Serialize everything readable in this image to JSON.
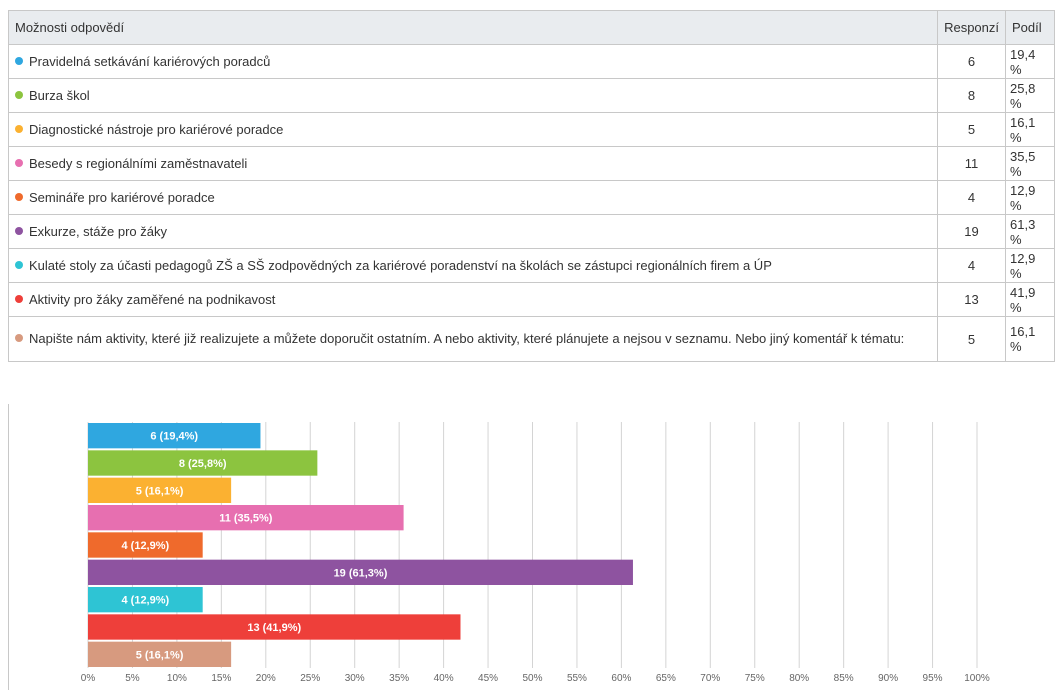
{
  "table": {
    "header": [
      "Možnosti odpovědí",
      "Responzí",
      "Podíl"
    ],
    "rows": [
      [
        "Pravidelná setkávání kariérových poradců",
        "6",
        "19,4 %"
      ],
      [
        "Burza škol",
        "8",
        "25,8 %"
      ],
      [
        "Diagnostické nástroje pro kariérové poradce",
        "5",
        "16,1 %"
      ],
      [
        "Besedy s regionálními zaměstnavateli",
        "11",
        "35,5 %"
      ],
      [
        "Semináře pro kariérové poradce",
        "4",
        "12,9 %"
      ],
      [
        "Exkurze, stáže pro žáky",
        "19",
        "61,3 %"
      ],
      [
        "Kulaté stoly za účasti pedagogů ZŠ a SŠ zodpovědných za kariérové poradenství na školách se zástupci regionálních firem a ÚP",
        "4",
        "12,9 %"
      ],
      [
        "Aktivity pro žáky zaměřené na podnikavost",
        "13",
        "41,9 %"
      ],
      [
        "Napište nám aktivity, které již realizujete a můžete doporučit ostatním. A nebo aktivity, které plánujete a nejsou v seznamu. Nebo jiný komentář k tématu:",
        "5",
        "16,1 %"
      ]
    ]
  },
  "chart_data": {
    "type": "bar",
    "orientation": "horizontal",
    "categories": [
      null,
      null,
      null,
      null,
      null,
      null,
      null,
      null,
      null
    ],
    "values": [
      19.4,
      25.8,
      16.1,
      35.5,
      12.9,
      61.3,
      12.9,
      41.9,
      16.1
    ],
    "value_labels": [
      "6 (19,4%)",
      "8 (25,8%)",
      "5 (16,1%)",
      "11 (35,5%)",
      "4 (12,9%)",
      "19 (61,3%)",
      "4 (12,9%)",
      "13 (41,9%)",
      "5 (16,1%)"
    ],
    "colors": [
      "#2fa7e0",
      "#8cc43f",
      "#fbb131",
      "#e76fb0",
      "#ef6a2c",
      "#8e53a0",
      "#2ec4d4",
      "#ee3f3a",
      "#d79a7f"
    ],
    "xlim": [
      0,
      100
    ],
    "xticks": [
      {
        "value": 0,
        "label": "0%"
      },
      {
        "value": 5,
        "label": "5%"
      },
      {
        "value": 10,
        "label": "10%"
      },
      {
        "value": 15,
        "label": "15%"
      },
      {
        "value": 20,
        "label": "20%"
      },
      {
        "value": 25,
        "label": "25%"
      },
      {
        "value": 30,
        "label": "30%"
      },
      {
        "value": 35,
        "label": "35%"
      },
      {
        "value": 40,
        "label": "40%"
      },
      {
        "value": 45,
        "label": "45%"
      },
      {
        "value": 50,
        "label": "50%"
      },
      {
        "value": 55,
        "label": "55%"
      },
      {
        "value": 60,
        "label": "60%"
      },
      {
        "value": 65,
        "label": "65%"
      },
      {
        "value": 70,
        "label": "70%"
      },
      {
        "value": 75,
        "label": "75%"
      },
      {
        "value": 80,
        "label": "80%"
      },
      {
        "value": 85,
        "label": "85%"
      },
      {
        "value": 90,
        "label": "90%"
      },
      {
        "value": 95,
        "label": "95%"
      },
      {
        "value": 100,
        "label": "100%"
      }
    ],
    "grid": true
  }
}
